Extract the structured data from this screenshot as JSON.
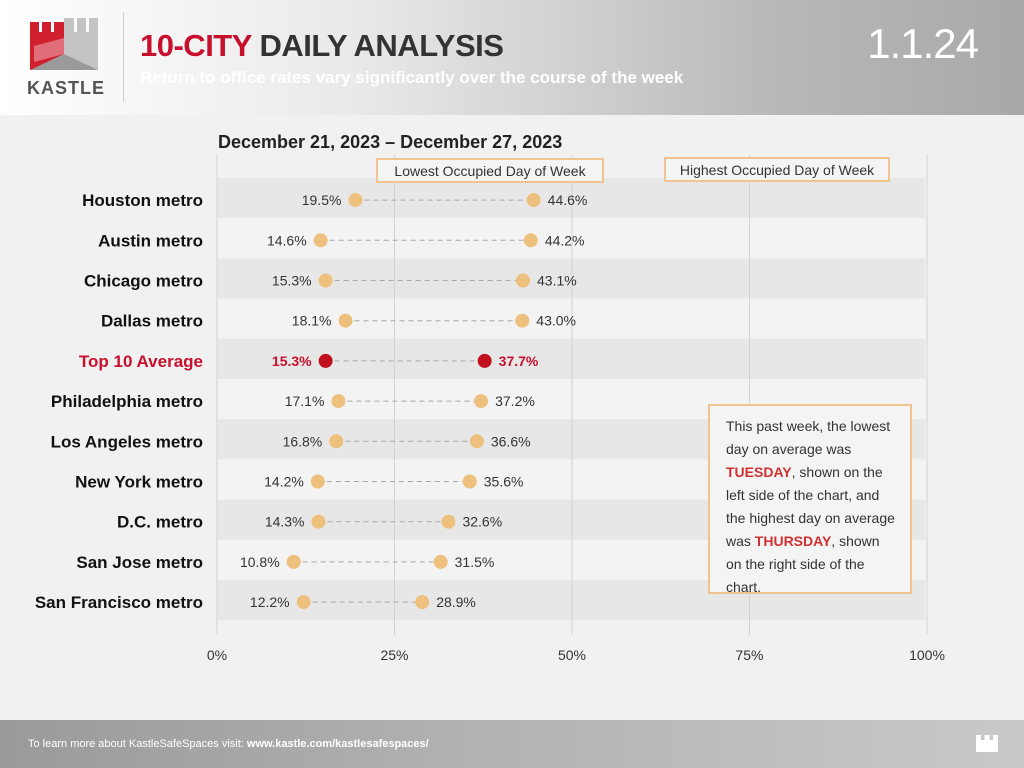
{
  "header": {
    "brand": "KASTLE",
    "title_accent": "10-CITY",
    "title_rest": " DAILY ANALYSIS",
    "subtitle": "Return to office rates vary significantly over the course of the week",
    "date_stamp": "1.1.24"
  },
  "callout": {
    "part1": "This past week, the lowest day on average was ",
    "low_day": "TUESDAY",
    "part2": ", shown on the left side of the chart, and the highest day on average was ",
    "high_day": "THURSDAY",
    "part3": ", shown on the right side of the chart."
  },
  "footer": {
    "prefix": "To learn more about KastleSafeSpaces visit: ",
    "link": "www.kastle.com/kastlesafespaces/"
  },
  "colors": {
    "accent": "#c8102e",
    "dot": "#eec07e",
    "highlight_dot": "#c0101e",
    "box_border": "#f0c490"
  },
  "chart_data": {
    "type": "dumbbell",
    "title": "December 21, 2023 – December 27, 2023",
    "legend_low": "Lowest Occupied Day of Week",
    "legend_high": "Highest Occupied Day of Week",
    "xlim": [
      0,
      100
    ],
    "x_ticks": [
      "0%",
      "25%",
      "50%",
      "75%",
      "100%"
    ],
    "x_tick_values": [
      0,
      25,
      50,
      75,
      100
    ],
    "rows": [
      {
        "name": "Houston metro",
        "low": 19.5,
        "high": 44.6,
        "low_label": "19.5%",
        "high_label": "44.6%",
        "highlight": false
      },
      {
        "name": "Austin metro",
        "low": 14.6,
        "high": 44.2,
        "low_label": "14.6%",
        "high_label": "44.2%",
        "highlight": false
      },
      {
        "name": "Chicago metro",
        "low": 15.3,
        "high": 43.1,
        "low_label": "15.3%",
        "high_label": "43.1%",
        "highlight": false
      },
      {
        "name": "Dallas metro",
        "low": 18.1,
        "high": 43.0,
        "low_label": "18.1%",
        "high_label": "43.0%",
        "highlight": false
      },
      {
        "name": "Top 10 Average",
        "low": 15.3,
        "high": 37.7,
        "low_label": "15.3%",
        "high_label": "37.7%",
        "highlight": true
      },
      {
        "name": "Philadelphia metro",
        "low": 17.1,
        "high": 37.2,
        "low_label": "17.1%",
        "high_label": "37.2%",
        "highlight": false
      },
      {
        "name": "Los Angeles metro",
        "low": 16.8,
        "high": 36.6,
        "low_label": "16.8%",
        "high_label": "36.6%",
        "highlight": false
      },
      {
        "name": "New York metro",
        "low": 14.2,
        "high": 35.6,
        "low_label": "14.2%",
        "high_label": "35.6%",
        "highlight": false
      },
      {
        "name": "D.C. metro",
        "low": 14.3,
        "high": 32.6,
        "low_label": "14.3%",
        "high_label": "32.6%",
        "highlight": false
      },
      {
        "name": "San Jose metro",
        "low": 10.8,
        "high": 31.5,
        "low_label": "10.8%",
        "high_label": "31.5%",
        "highlight": false
      },
      {
        "name": "San Francisco metro",
        "low": 12.2,
        "high": 28.9,
        "low_label": "12.2%",
        "high_label": "28.9%",
        "highlight": false
      }
    ]
  }
}
